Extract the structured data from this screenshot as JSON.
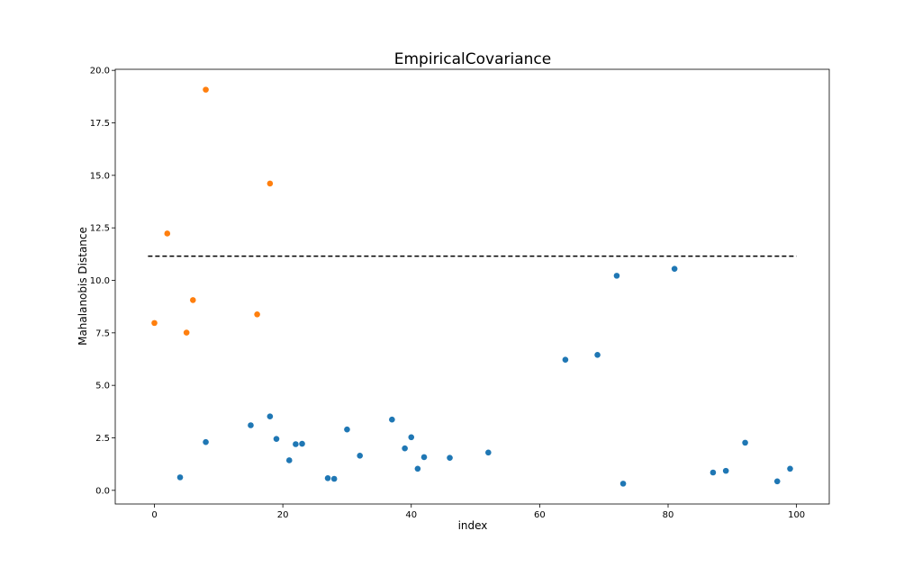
{
  "chart_data": {
    "type": "scatter",
    "title": "EmpiricalCovariance",
    "xlabel": "index",
    "ylabel": "Mahalanobis Distance",
    "xlim": [
      -6.1,
      105.1
    ],
    "ylim": [
      -0.65,
      20.05
    ],
    "x_ticks": [
      0,
      20,
      40,
      60,
      80,
      100
    ],
    "x_tick_labels": [
      "0",
      "20",
      "40",
      "60",
      "80",
      "100"
    ],
    "y_ticks": [
      0.0,
      2.5,
      5.0,
      7.5,
      10.0,
      12.5,
      15.0,
      17.5,
      20.0
    ],
    "y_tick_labels": [
      "0.0",
      "2.5",
      "5.0",
      "7.5",
      "10.0",
      "12.5",
      "15.0",
      "17.5",
      "20.0"
    ],
    "grid": false,
    "threshold": {
      "y": 11.15,
      "x_range": [
        -1,
        100
      ],
      "style": "dashed",
      "color": "#000000"
    },
    "series": [
      {
        "color": "#1f77b4",
        "points": [
          [
            4,
            0.62
          ],
          [
            8,
            2.3
          ],
          [
            15,
            3.1
          ],
          [
            18,
            3.52
          ],
          [
            19,
            2.45
          ],
          [
            21,
            1.43
          ],
          [
            22,
            2.2
          ],
          [
            23,
            2.22
          ],
          [
            27,
            0.58
          ],
          [
            28,
            0.55
          ],
          [
            30,
            2.9
          ],
          [
            32,
            1.65
          ],
          [
            37,
            3.37
          ],
          [
            39,
            2.0
          ],
          [
            40,
            2.53
          ],
          [
            41,
            1.03
          ],
          [
            42,
            1.58
          ],
          [
            46,
            1.55
          ],
          [
            52,
            1.8
          ],
          [
            64,
            6.22
          ],
          [
            69,
            6.45
          ],
          [
            72,
            10.22
          ],
          [
            73,
            0.32
          ],
          [
            81,
            10.55
          ],
          [
            87,
            0.85
          ],
          [
            89,
            0.93
          ],
          [
            92,
            2.27
          ],
          [
            97,
            0.43
          ],
          [
            99,
            1.03
          ]
        ]
      },
      {
        "color": "#ff7f0e",
        "points": [
          [
            0,
            7.97
          ],
          [
            2,
            12.23
          ],
          [
            5,
            7.51
          ],
          [
            6,
            9.06
          ],
          [
            8,
            19.08
          ],
          [
            16,
            8.38
          ],
          [
            18,
            14.61
          ]
        ]
      }
    ]
  }
}
